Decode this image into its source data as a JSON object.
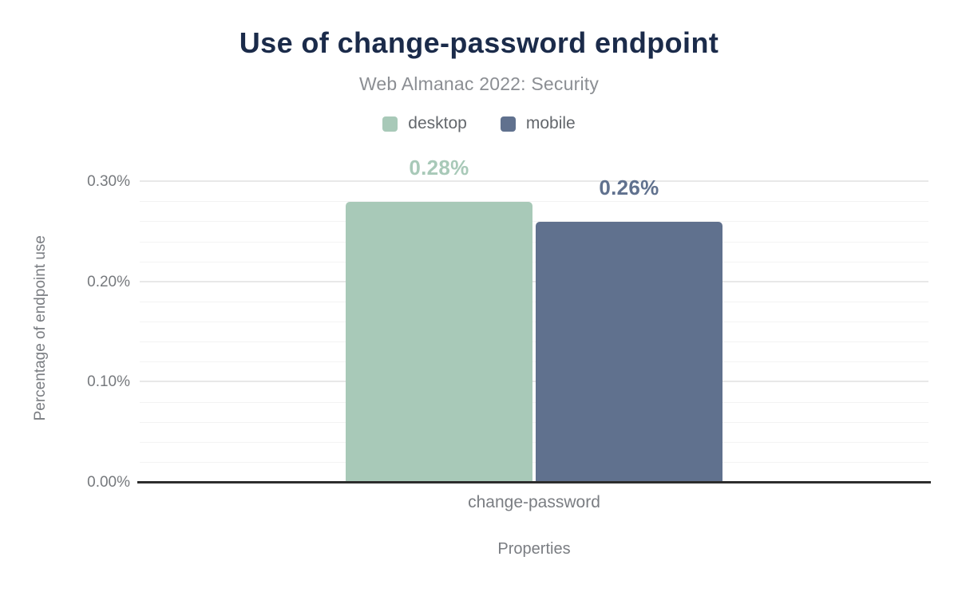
{
  "chart_data": {
    "type": "bar",
    "title": "Use of change-password endpoint",
    "subtitle": "Web Almanac 2022: Security",
    "xlabel": "Properties",
    "ylabel": "Percentage of endpoint use",
    "categories": [
      "change-password"
    ],
    "series": [
      {
        "name": "desktop",
        "color": "#a8c9b8",
        "values": [
          0.28
        ],
        "labels": [
          "0.28%"
        ]
      },
      {
        "name": "mobile",
        "color": "#60718e",
        "values": [
          0.26
        ],
        "labels": [
          "0.26%"
        ]
      }
    ],
    "ylim": [
      0,
      0.32
    ],
    "yticks": [
      {
        "value": 0.0,
        "label": "0.00%"
      },
      {
        "value": 0.1,
        "label": "0.10%"
      },
      {
        "value": 0.2,
        "label": "0.20%"
      },
      {
        "value": 0.3,
        "label": "0.30%"
      }
    ],
    "minor_grid_step": 0.02,
    "grid": true,
    "legend_position": "top"
  },
  "colors": {
    "title": "#1b2b4a",
    "subtitle": "#8b8e93",
    "axis_text": "#76797d",
    "baseline": "#2d2d2d",
    "major_grid": "#e8e8e8",
    "minor_grid": "#f3f3f3"
  }
}
